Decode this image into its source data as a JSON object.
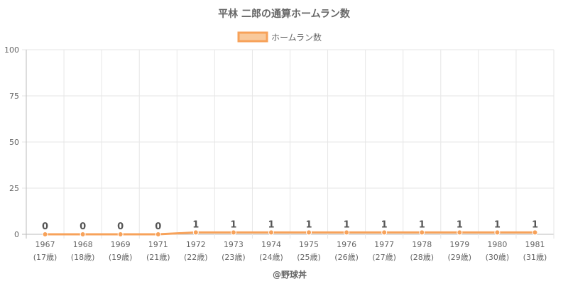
{
  "chart_data": {
    "type": "line",
    "title": "平林 二郎の通算ホームラン数",
    "legend": {
      "label": "ホームラン数",
      "position": "top"
    },
    "categories": [
      [
        "1967",
        "(17歳)"
      ],
      [
        "1968",
        "(18歳)"
      ],
      [
        "1969",
        "(19歳)"
      ],
      [
        "1971",
        "(21歳)"
      ],
      [
        "1972",
        "(22歳)"
      ],
      [
        "1973",
        "(23歳)"
      ],
      [
        "1974",
        "(24歳)"
      ],
      [
        "1975",
        "(25歳)"
      ],
      [
        "1976",
        "(26歳)"
      ],
      [
        "1977",
        "(27歳)"
      ],
      [
        "1978",
        "(28歳)"
      ],
      [
        "1979",
        "(29歳)"
      ],
      [
        "1980",
        "(30歳)"
      ],
      [
        "1981",
        "(31歳)"
      ]
    ],
    "series": [
      {
        "name": "ホームラン数",
        "values": [
          0,
          0,
          0,
          0,
          1,
          1,
          1,
          1,
          1,
          1,
          1,
          1,
          1,
          1
        ]
      }
    ],
    "ylim": [
      0,
      100
    ],
    "yticks": [
      0,
      25,
      50,
      75,
      100
    ],
    "grid": true,
    "line_color": "#f7a25a",
    "fill_color": "#f9c99b",
    "credit": "@野球丼"
  }
}
